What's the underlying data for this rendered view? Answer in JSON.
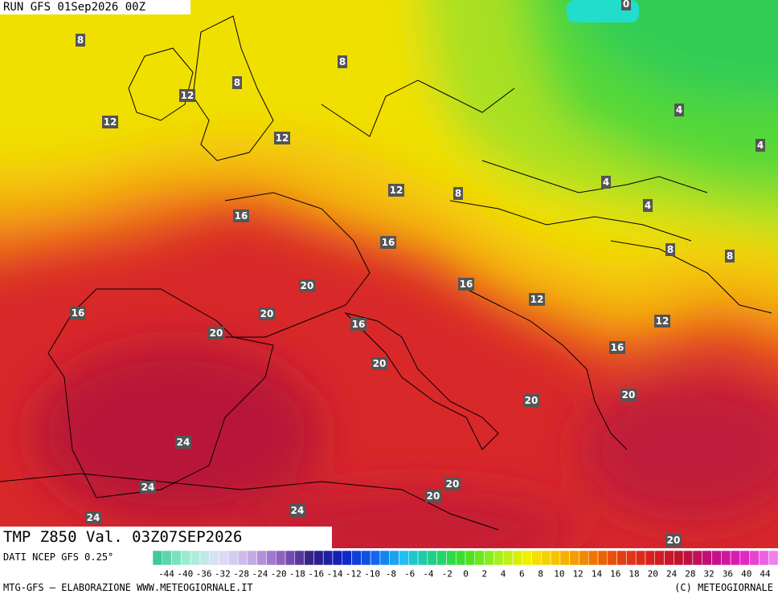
{
  "header": {
    "run": "RUN GFS 01Sep2026 00Z"
  },
  "footer": {
    "field": "TMP Z850 Val. 03Z07SEP2026",
    "source": "DATI NCEP GFS 0.25°",
    "credit": "MTG-GFS — ELABORAZIONE WWW.METEOGIORNALE.IT",
    "copyright": "(C) METEOGIORNALE"
  },
  "colorbar": {
    "ticks": [
      -44,
      -40,
      -36,
      -32,
      -28,
      -24,
      -20,
      -18,
      -16,
      -14,
      -12,
      -10,
      -8,
      -6,
      -4,
      -2,
      0,
      2,
      4,
      6,
      8,
      10,
      12,
      14,
      16,
      18,
      20,
      24,
      28,
      32,
      36,
      40,
      44
    ]
  },
  "map": {
    "labels": [
      8,
      8,
      8,
      12,
      12,
      12,
      0,
      4,
      4,
      4,
      4,
      12,
      8,
      16,
      16,
      8,
      8,
      16,
      20,
      12,
      20,
      16,
      12,
      20,
      16,
      16,
      20,
      20,
      20,
      24,
      24,
      20,
      20,
      24,
      24,
      20
    ]
  }
}
